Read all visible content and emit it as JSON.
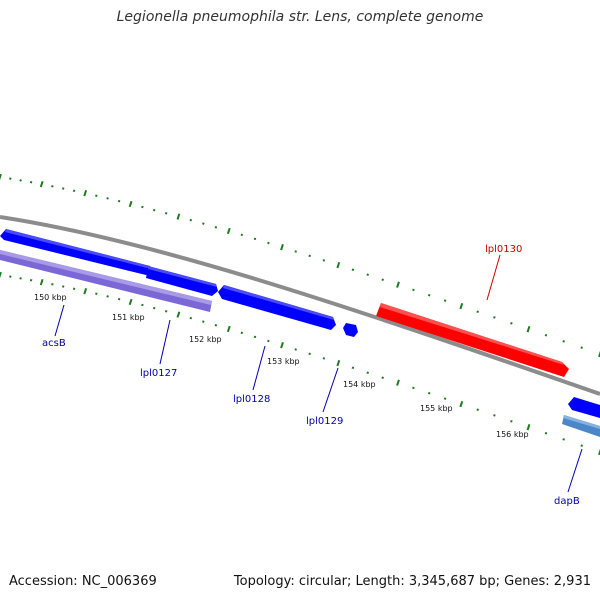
{
  "title": "Legionella pneumophila str. Lens, complete genome",
  "footer": {
    "accession": "Accession: NC_006369",
    "summary": "Topology: circular; Length: 3,345,687 bp; Genes: 2,931"
  },
  "colors": {
    "backbone": "#8c8c8c",
    "forward_gene": "#0000ff",
    "reverse_gene": "#ff0000",
    "ruler_ticks": "#1e7a1e",
    "gene_label_forward": "#0000aa",
    "gene_label_reverse": "#cc0000",
    "light_feature": "#7b68d6",
    "steel_feature": "#4a86c8"
  },
  "ruler": {
    "unit": "kbp",
    "labels": [
      "150 kbp",
      "151 kbp",
      "152 kbp",
      "153 kbp",
      "154 kbp",
      "155 kbp",
      "156 kbp"
    ]
  },
  "genes": [
    {
      "name": "acsB",
      "strand": "forward"
    },
    {
      "name": "lpl0127",
      "strand": "forward"
    },
    {
      "name": "lpl0128",
      "strand": "forward"
    },
    {
      "name": "lpl0129",
      "strand": "forward"
    },
    {
      "name": "lpl0130",
      "strand": "reverse"
    },
    {
      "name": "dapB",
      "strand": "forward"
    }
  ]
}
